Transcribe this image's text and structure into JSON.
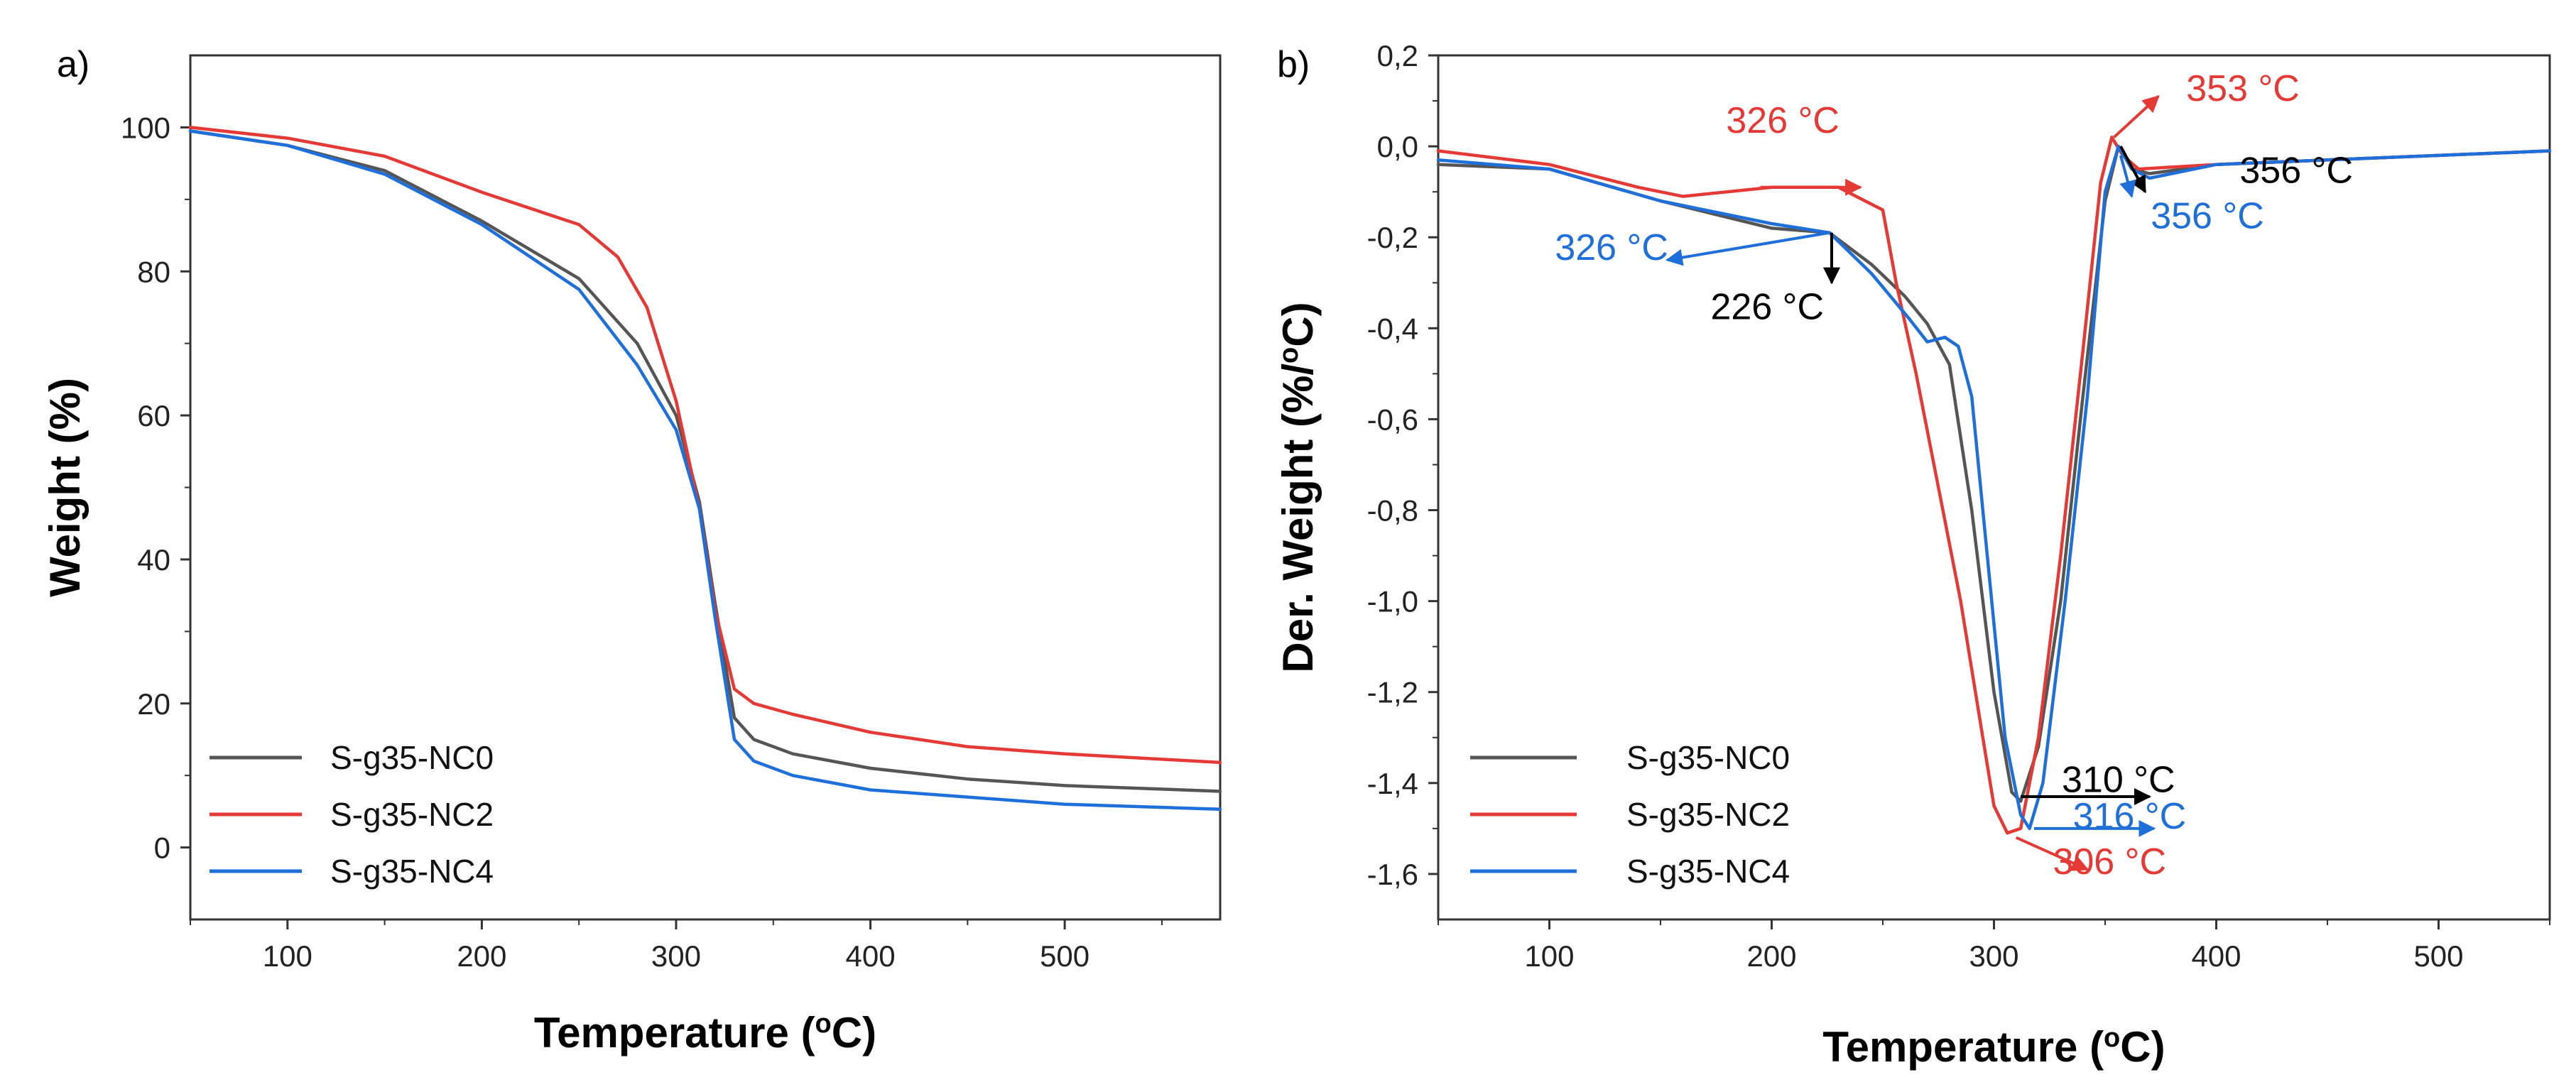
{
  "colors": {
    "NC0": "#555555",
    "NC2": "#e53935",
    "NC4": "#1e6fd9"
  },
  "chart_data": [
    {
      "panel_label": "a)",
      "type": "line",
      "xlabel": "Temperature",
      "xlabel_unit": "(oC)",
      "ylabel": "Weight  (%)",
      "xlim": [
        50,
        580
      ],
      "ylim": [
        -10,
        110
      ],
      "xticks": [
        100,
        200,
        300,
        400,
        500
      ],
      "yticks": [
        0,
        20,
        40,
        60,
        80,
        100
      ],
      "xtick_labels": [
        "100",
        "200",
        "300",
        "400",
        "500"
      ],
      "ytick_labels": [
        "0",
        "20",
        "40",
        "60",
        "80",
        "100"
      ],
      "legend": [
        "S-g35-NC0",
        "S-g35-NC2",
        "S-g35-NC4"
      ],
      "legend_position": "bottom-left",
      "series": [
        {
          "name": "S-g35-NC0",
          "color_key": "NC0",
          "x": [
            50,
            100,
            150,
            200,
            250,
            280,
            300,
            312,
            320,
            330,
            340,
            360,
            400,
            450,
            500,
            580
          ],
          "y": [
            99.5,
            97.5,
            94,
            87,
            79,
            70,
            60,
            48,
            34,
            18,
            15,
            13,
            11,
            9.5,
            8.6,
            7.8
          ]
        },
        {
          "name": "S-g35-NC2",
          "color_key": "NC2",
          "x": [
            50,
            100,
            150,
            200,
            250,
            270,
            285,
            300,
            312,
            320,
            330,
            340,
            360,
            400,
            450,
            500,
            580
          ],
          "y": [
            100,
            98.5,
            96,
            91,
            86.5,
            82,
            75,
            62,
            47,
            33,
            22,
            20,
            18.5,
            16,
            14,
            13,
            11.8
          ]
        },
        {
          "name": "S-g35-NC4",
          "color_key": "NC4",
          "x": [
            50,
            100,
            150,
            200,
            250,
            280,
            300,
            312,
            320,
            330,
            340,
            360,
            400,
            450,
            500,
            580
          ],
          "y": [
            99.5,
            97.5,
            93.5,
            86.5,
            77.5,
            67,
            58,
            47,
            32,
            15,
            12,
            10,
            8,
            7,
            6,
            5.3
          ]
        }
      ]
    },
    {
      "panel_label": "b)",
      "type": "line",
      "xlabel": "Temperature",
      "xlabel_unit": "(oC)",
      "ylabel": "Der. Weight  (%/oC)",
      "xlim": [
        50,
        550
      ],
      "ylim": [
        -1.7,
        0.2
      ],
      "xticks": [
        100,
        200,
        300,
        400,
        500
      ],
      "yticks": [
        0.2,
        0.0,
        -0.2,
        -0.4,
        -0.6,
        -0.8,
        -1.0,
        -1.2,
        -1.4,
        -1.6
      ],
      "xtick_labels": [
        "100",
        "200",
        "300",
        "400",
        "500"
      ],
      "ytick_labels": [
        "0,2",
        "0,0",
        "-0,2",
        "-0,4",
        "-0,6",
        "-0,8",
        "-1,0",
        "-1,2",
        "-1,4",
        "-1,6"
      ],
      "legend": [
        "S-g35-NC0",
        "S-g35-NC2",
        "S-g35-NC4"
      ],
      "legend_position": "bottom-left",
      "series": [
        {
          "name": "S-g35-NC0",
          "color_key": "NC0",
          "x": [
            50,
            100,
            150,
            200,
            226,
            245,
            260,
            270,
            280,
            290,
            300,
            308,
            312,
            320,
            330,
            340,
            350,
            356,
            362,
            370,
            400,
            450,
            500,
            550
          ],
          "y": [
            -0.04,
            -0.05,
            -0.12,
            -0.18,
            -0.19,
            -0.26,
            -0.33,
            -0.39,
            -0.48,
            -0.8,
            -1.2,
            -1.42,
            -1.44,
            -1.32,
            -1.0,
            -0.55,
            -0.12,
            0.0,
            -0.05,
            -0.06,
            -0.04,
            -0.03,
            -0.02,
            -0.01
          ]
        },
        {
          "name": "S-g35-NC2",
          "color_key": "NC2",
          "x": [
            50,
            100,
            140,
            160,
            200,
            230,
            250,
            256,
            265,
            275,
            285,
            295,
            300,
            306,
            312,
            320,
            330,
            340,
            348,
            353,
            358,
            365,
            400,
            450,
            500,
            550
          ],
          "y": [
            -0.01,
            -0.04,
            -0.09,
            -0.11,
            -0.09,
            -0.09,
            -0.14,
            -0.3,
            -0.5,
            -0.75,
            -1.0,
            -1.3,
            -1.45,
            -1.51,
            -1.5,
            -1.3,
            -0.9,
            -0.45,
            -0.08,
            0.02,
            -0.02,
            -0.05,
            -0.04,
            -0.03,
            -0.02,
            -0.01
          ]
        },
        {
          "name": "S-g35-NC4",
          "color_key": "NC4",
          "x": [
            50,
            100,
            150,
            200,
            226,
            245,
            262,
            270,
            278,
            284,
            290,
            298,
            305,
            312,
            316,
            322,
            332,
            342,
            350,
            356,
            362,
            370,
            400,
            450,
            500,
            550
          ],
          "y": [
            -0.03,
            -0.05,
            -0.12,
            -0.17,
            -0.19,
            -0.28,
            -0.38,
            -0.43,
            -0.42,
            -0.44,
            -0.55,
            -0.95,
            -1.3,
            -1.47,
            -1.5,
            -1.4,
            -1.0,
            -0.55,
            -0.1,
            0.0,
            -0.05,
            -0.07,
            -0.04,
            -0.03,
            -0.02,
            -0.01
          ]
        }
      ],
      "annotations": [
        {
          "text": "326 °C",
          "color_key": "NC2",
          "x": 205,
          "y": 0.03,
          "tip_x": 240,
          "tip_y": -0.09,
          "from_x": 195,
          "from_y": -0.09
        },
        {
          "text": "353 °C",
          "color_key": "NC2",
          "x": 412,
          "y": 0.1,
          "tip_x": 374,
          "tip_y": 0.11,
          "from_x": 354,
          "from_y": 0.02
        },
        {
          "text": "356 °C",
          "color_key": "NC0",
          "x": 436,
          "y": -0.08,
          "tip_x": 368,
          "tip_y": -0.1,
          "from_x": 357,
          "from_y": 0.0
        },
        {
          "text": "356 °C",
          "color_key": "NC4",
          "x": 396,
          "y": -0.18,
          "tip_x": 362,
          "tip_y": -0.11,
          "from_x": 357,
          "from_y": -0.02
        },
        {
          "text": "326 °C",
          "color_key": "NC4",
          "x": 128,
          "y": -0.25,
          "tip_x": 153,
          "tip_y": -0.25,
          "from_x": 226,
          "from_y": -0.19
        },
        {
          "text": "226 °C",
          "color_key": "NC0",
          "x": 198,
          "y": -0.38,
          "tip_x": 227,
          "tip_y": -0.3,
          "from_x": 227,
          "from_y": -0.19
        },
        {
          "text": "310 °C",
          "color_key": "NC0",
          "x": 356,
          "y": -1.42,
          "tip_x": 370,
          "tip_y": -1.43,
          "from_x": 312,
          "from_y": -1.43
        },
        {
          "text": "316 °C",
          "color_key": "NC4",
          "x": 361,
          "y": -1.5,
          "tip_x": 372,
          "tip_y": -1.5,
          "from_x": 318,
          "from_y": -1.5
        },
        {
          "text": "306 °C",
          "color_key": "NC2",
          "x": 352,
          "y": -1.6,
          "tip_x": 342,
          "tip_y": -1.59,
          "from_x": 310,
          "from_y": -1.52
        }
      ]
    }
  ]
}
